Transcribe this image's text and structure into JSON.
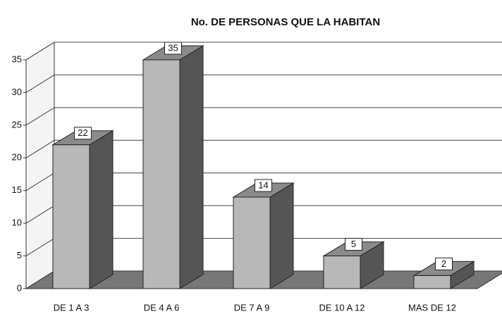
{
  "chart_data": {
    "type": "bar3d",
    "title": "No. DE PERSONAS QUE LA HABITAN",
    "categories": [
      "DE 1 A 3",
      "DE 4 A 6",
      "DE 7 A 9",
      "DE 10 A 12",
      "MAS DE 12"
    ],
    "values": [
      22,
      35,
      14,
      5,
      2
    ],
    "color": "#b8b8b8",
    "ylim": [
      0,
      35
    ],
    "yticks": [
      0,
      5,
      10,
      15,
      20,
      25,
      30,
      35
    ],
    "grid": true
  }
}
